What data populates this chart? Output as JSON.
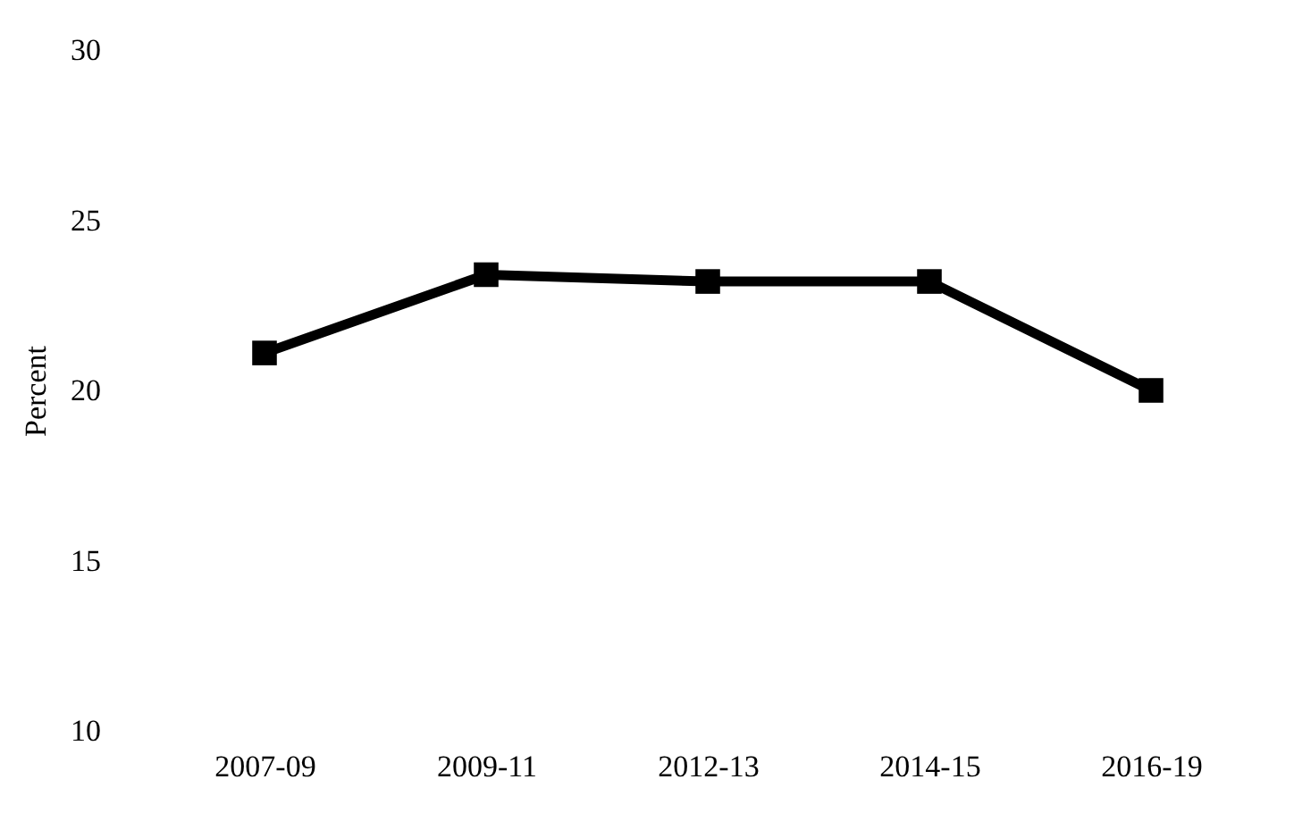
{
  "chart_data": {
    "type": "line",
    "ylabel": "Percent",
    "categories": [
      "2007-09",
      "2009-11",
      "2012-13",
      "2014-15",
      "2016-19"
    ],
    "series": [
      {
        "color": "#000000",
        "values": [
          21.1,
          23.4,
          23.2,
          23.2,
          20.0
        ]
      }
    ],
    "ylim": [
      10,
      30
    ],
    "yticks": [
      10,
      15,
      20,
      25,
      30
    ],
    "marker": "square",
    "line_style": "solid"
  }
}
